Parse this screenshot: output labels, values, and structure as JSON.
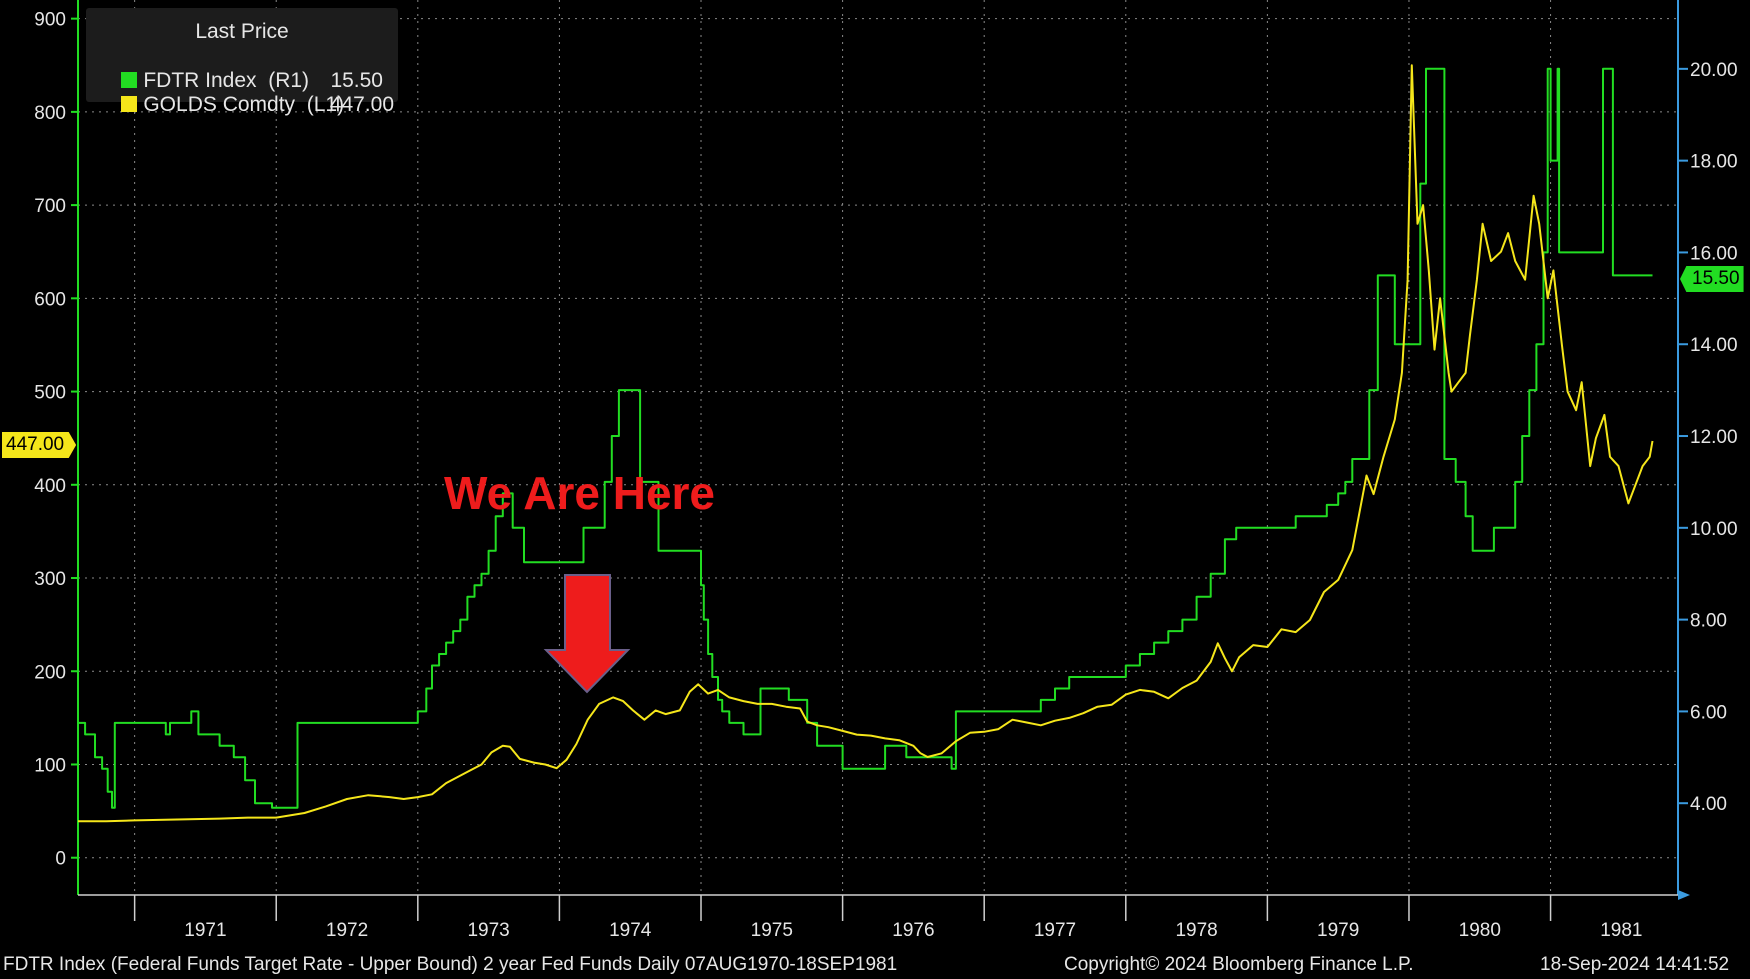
{
  "legend": {
    "header": "Last Price",
    "items": [
      {
        "label": "FDTR Index  (R1)",
        "value": "15.50",
        "color": "#22dd22"
      },
      {
        "label": "GOLDS Comdty  (L1)",
        "value": "447.00",
        "color": "#f5e61a"
      }
    ]
  },
  "annotation": "We Are Here",
  "left_tag": "447.00",
  "right_tag": "15.50",
  "footer": {
    "left": "FDTR Index (Federal Funds Target Rate - Upper Bound) 2 year Fed Funds  Daily 07AUG1970-18SEP1981",
    "center": "Copyright© 2024 Bloomberg Finance L.P.",
    "right": "18-Sep-2024 14:41:52"
  },
  "chart_data": {
    "type": "line",
    "x_axis": {
      "ticks": [
        "1971",
        "1972",
        "1973",
        "1974",
        "1975",
        "1976",
        "1977",
        "1978",
        "1979",
        "1980",
        "1981"
      ],
      "range": [
        1970.6,
        1981.9
      ]
    },
    "left_axis": {
      "range": [
        -40,
        920
      ],
      "ticks": [
        "0",
        "100",
        "200",
        "300",
        "400",
        "500",
        "600",
        "700",
        "800",
        "900"
      ],
      "color": "#22dd22"
    },
    "right_axis": {
      "range": [
        2,
        21.5
      ],
      "ticks": [
        "4.00",
        "6.00",
        "8.00",
        "10.00",
        "12.00",
        "14.00",
        "16.00",
        "18.00",
        "20.00"
      ],
      "color": "#3b9be0"
    },
    "grid": true,
    "legend_position": "top-left",
    "series": [
      {
        "name": "FDTR Index",
        "axis": "right",
        "color": "#22dd22",
        "step": true,
        "points": [
          [
            1970.6,
            5.75
          ],
          [
            1970.65,
            5.5
          ],
          [
            1970.72,
            5.0
          ],
          [
            1970.77,
            4.75
          ],
          [
            1970.81,
            4.25
          ],
          [
            1970.84,
            3.9
          ],
          [
            1970.86,
            5.75
          ],
          [
            1971.0,
            5.75
          ],
          [
            1971.2,
            5.75
          ],
          [
            1971.22,
            5.5
          ],
          [
            1971.25,
            5.75
          ],
          [
            1971.38,
            5.75
          ],
          [
            1971.4,
            6.0
          ],
          [
            1971.45,
            5.5
          ],
          [
            1971.55,
            5.5
          ],
          [
            1971.6,
            5.25
          ],
          [
            1971.7,
            5.0
          ],
          [
            1971.78,
            4.5
          ],
          [
            1971.85,
            4.0
          ],
          [
            1971.97,
            3.9
          ],
          [
            1972.1,
            3.9
          ],
          [
            1972.15,
            5.75
          ],
          [
            1972.5,
            5.75
          ],
          [
            1972.9,
            5.75
          ],
          [
            1973.0,
            6.0
          ],
          [
            1973.06,
            6.5
          ],
          [
            1973.1,
            7.0
          ],
          [
            1973.15,
            7.25
          ],
          [
            1973.2,
            7.5
          ],
          [
            1973.25,
            7.75
          ],
          [
            1973.3,
            8.0
          ],
          [
            1973.35,
            8.5
          ],
          [
            1973.4,
            8.75
          ],
          [
            1973.45,
            9.0
          ],
          [
            1973.5,
            9.5
          ],
          [
            1973.55,
            10.25
          ],
          [
            1973.6,
            10.75
          ],
          [
            1973.67,
            10.0
          ],
          [
            1973.75,
            9.25
          ],
          [
            1973.85,
            9.25
          ],
          [
            1974.0,
            9.25
          ],
          [
            1974.15,
            9.25
          ],
          [
            1974.17,
            10.0
          ],
          [
            1974.3,
            10.0
          ],
          [
            1974.32,
            11.0
          ],
          [
            1974.37,
            12.0
          ],
          [
            1974.42,
            13.0
          ],
          [
            1974.55,
            13.0
          ],
          [
            1974.57,
            11.0
          ],
          [
            1974.7,
            9.5
          ],
          [
            1974.95,
            9.5
          ],
          [
            1975.0,
            8.75
          ],
          [
            1975.02,
            8.0
          ],
          [
            1975.05,
            7.25
          ],
          [
            1975.08,
            6.75
          ],
          [
            1975.12,
            6.25
          ],
          [
            1975.15,
            6.0
          ],
          [
            1975.2,
            5.75
          ],
          [
            1975.3,
            5.5
          ],
          [
            1975.4,
            5.5
          ],
          [
            1975.42,
            6.5
          ],
          [
            1975.6,
            6.5
          ],
          [
            1975.62,
            6.25
          ],
          [
            1975.72,
            6.25
          ],
          [
            1975.75,
            5.75
          ],
          [
            1975.82,
            5.25
          ],
          [
            1976.0,
            4.75
          ],
          [
            1976.1,
            4.75
          ],
          [
            1976.18,
            4.75
          ],
          [
            1976.2,
            4.75
          ],
          [
            1976.25,
            4.75
          ],
          [
            1976.3,
            5.25
          ],
          [
            1976.4,
            5.25
          ],
          [
            1976.45,
            5.0
          ],
          [
            1976.55,
            5.0
          ],
          [
            1976.7,
            5.0
          ],
          [
            1976.77,
            4.75
          ],
          [
            1976.8,
            6.0
          ],
          [
            1977.0,
            6.0
          ],
          [
            1977.3,
            6.0
          ],
          [
            1977.4,
            6.25
          ],
          [
            1977.5,
            6.5
          ],
          [
            1977.6,
            6.75
          ],
          [
            1977.9,
            6.75
          ],
          [
            1978.0,
            7.0
          ],
          [
            1978.1,
            7.25
          ],
          [
            1978.2,
            7.5
          ],
          [
            1978.3,
            7.75
          ],
          [
            1978.4,
            8.0
          ],
          [
            1978.5,
            8.5
          ],
          [
            1978.6,
            9.0
          ],
          [
            1978.7,
            9.75
          ],
          [
            1978.78,
            10.0
          ],
          [
            1978.9,
            10.0
          ],
          [
            1979.0,
            10.0
          ],
          [
            1979.2,
            10.25
          ],
          [
            1979.35,
            10.25
          ],
          [
            1979.42,
            10.5
          ],
          [
            1979.5,
            10.75
          ],
          [
            1979.55,
            11.0
          ],
          [
            1979.6,
            11.5
          ],
          [
            1979.7,
            11.5
          ],
          [
            1979.72,
            13.0
          ],
          [
            1979.78,
            15.5
          ],
          [
            1979.87,
            15.5
          ],
          [
            1979.9,
            14.0
          ],
          [
            1980.05,
            14.0
          ],
          [
            1980.08,
            17.5
          ],
          [
            1980.12,
            20.0
          ],
          [
            1980.2,
            20.0
          ],
          [
            1980.25,
            11.5
          ],
          [
            1980.33,
            11.0
          ],
          [
            1980.4,
            10.25
          ],
          [
            1980.45,
            9.5
          ],
          [
            1980.55,
            9.5
          ],
          [
            1980.6,
            10.0
          ],
          [
            1980.72,
            10.0
          ],
          [
            1980.75,
            11.0
          ],
          [
            1980.8,
            12.0
          ],
          [
            1980.85,
            13.0
          ],
          [
            1980.9,
            14.0
          ],
          [
            1980.95,
            16.0
          ],
          [
            1980.98,
            20.0
          ],
          [
            1981.0,
            18.0
          ],
          [
            1981.05,
            20.0
          ],
          [
            1981.06,
            16.0
          ],
          [
            1981.35,
            16.0
          ],
          [
            1981.37,
            20.0
          ],
          [
            1981.42,
            20.0
          ],
          [
            1981.44,
            15.5
          ],
          [
            1981.72,
            15.5
          ]
        ]
      },
      {
        "name": "GOLDS Comdty",
        "axis": "left",
        "color": "#f5e61a",
        "step": false,
        "points": [
          [
            1970.6,
            39
          ],
          [
            1970.8,
            39
          ],
          [
            1971.0,
            40
          ],
          [
            1971.3,
            41
          ],
          [
            1971.6,
            42
          ],
          [
            1971.8,
            43
          ],
          [
            1972.0,
            43
          ],
          [
            1972.2,
            48
          ],
          [
            1972.35,
            55
          ],
          [
            1972.5,
            63
          ],
          [
            1972.65,
            67
          ],
          [
            1972.8,
            65
          ],
          [
            1972.9,
            63
          ],
          [
            1973.0,
            65
          ],
          [
            1973.1,
            68
          ],
          [
            1973.2,
            80
          ],
          [
            1973.35,
            92
          ],
          [
            1973.45,
            100
          ],
          [
            1973.52,
            113
          ],
          [
            1973.6,
            120
          ],
          [
            1973.65,
            119
          ],
          [
            1973.72,
            106
          ],
          [
            1973.82,
            102
          ],
          [
            1973.9,
            100
          ],
          [
            1973.98,
            96
          ],
          [
            1974.05,
            105
          ],
          [
            1974.12,
            122
          ],
          [
            1974.2,
            148
          ],
          [
            1974.28,
            165
          ],
          [
            1974.38,
            172
          ],
          [
            1974.45,
            168
          ],
          [
            1974.52,
            158
          ],
          [
            1974.6,
            148
          ],
          [
            1974.68,
            158
          ],
          [
            1974.75,
            154
          ],
          [
            1974.85,
            158
          ],
          [
            1974.92,
            178
          ],
          [
            1974.98,
            186
          ],
          [
            1975.05,
            176
          ],
          [
            1975.12,
            180
          ],
          [
            1975.2,
            172
          ],
          [
            1975.3,
            168
          ],
          [
            1975.4,
            165
          ],
          [
            1975.5,
            165
          ],
          [
            1975.6,
            162
          ],
          [
            1975.7,
            160
          ],
          [
            1975.75,
            146
          ],
          [
            1975.82,
            142
          ],
          [
            1975.9,
            140
          ],
          [
            1976.0,
            136
          ],
          [
            1976.1,
            132
          ],
          [
            1976.2,
            131
          ],
          [
            1976.3,
            128
          ],
          [
            1976.4,
            126
          ],
          [
            1976.5,
            120
          ],
          [
            1976.55,
            112
          ],
          [
            1976.6,
            108
          ],
          [
            1976.7,
            112
          ],
          [
            1976.8,
            125
          ],
          [
            1976.9,
            134
          ],
          [
            1977.0,
            135
          ],
          [
            1977.1,
            138
          ],
          [
            1977.2,
            148
          ],
          [
            1977.3,
            145
          ],
          [
            1977.4,
            142
          ],
          [
            1977.5,
            147
          ],
          [
            1977.6,
            150
          ],
          [
            1977.7,
            155
          ],
          [
            1977.8,
            162
          ],
          [
            1977.9,
            164
          ],
          [
            1978.0,
            175
          ],
          [
            1978.1,
            180
          ],
          [
            1978.2,
            178
          ],
          [
            1978.3,
            171
          ],
          [
            1978.4,
            182
          ],
          [
            1978.5,
            190
          ],
          [
            1978.6,
            210
          ],
          [
            1978.65,
            230
          ],
          [
            1978.7,
            214
          ],
          [
            1978.75,
            200
          ],
          [
            1978.8,
            215
          ],
          [
            1978.9,
            228
          ],
          [
            1979.0,
            226
          ],
          [
            1979.1,
            245
          ],
          [
            1979.2,
            242
          ],
          [
            1979.3,
            255
          ],
          [
            1979.4,
            285
          ],
          [
            1979.5,
            298
          ],
          [
            1979.6,
            330
          ],
          [
            1979.65,
            370
          ],
          [
            1979.7,
            410
          ],
          [
            1979.75,
            390
          ],
          [
            1979.82,
            430
          ],
          [
            1979.9,
            470
          ],
          [
            1979.95,
            520
          ],
          [
            1979.99,
            620
          ],
          [
            1980.02,
            850
          ],
          [
            1980.06,
            680
          ],
          [
            1980.1,
            700
          ],
          [
            1980.14,
            630
          ],
          [
            1980.18,
            545
          ],
          [
            1980.22,
            600
          ],
          [
            1980.28,
            520
          ],
          [
            1980.3,
            500
          ],
          [
            1980.35,
            510
          ],
          [
            1980.4,
            520
          ],
          [
            1980.43,
            560
          ],
          [
            1980.48,
            620
          ],
          [
            1980.52,
            680
          ],
          [
            1980.58,
            640
          ],
          [
            1980.65,
            650
          ],
          [
            1980.7,
            670
          ],
          [
            1980.75,
            640
          ],
          [
            1980.82,
            620
          ],
          [
            1980.88,
            710
          ],
          [
            1980.92,
            680
          ],
          [
            1980.98,
            600
          ],
          [
            1981.02,
            630
          ],
          [
            1981.08,
            550
          ],
          [
            1981.12,
            500
          ],
          [
            1981.18,
            480
          ],
          [
            1981.22,
            510
          ],
          [
            1981.28,
            420
          ],
          [
            1981.32,
            450
          ],
          [
            1981.38,
            475
          ],
          [
            1981.42,
            430
          ],
          [
            1981.48,
            420
          ],
          [
            1981.55,
            380
          ],
          [
            1981.6,
            400
          ],
          [
            1981.65,
            420
          ],
          [
            1981.7,
            430
          ],
          [
            1981.72,
            447
          ]
        ]
      }
    ]
  }
}
